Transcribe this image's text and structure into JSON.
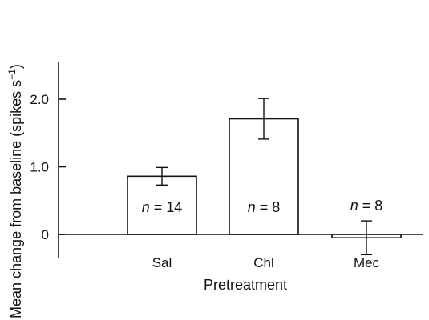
{
  "chart_data": {
    "type": "bar",
    "xlabel": "Pretreatment",
    "ylabel": "Mean change from baseline (spikes s⁻¹)",
    "ylabel_main": "Mean change from baseline (spikes s",
    "ylabel_sup": "−1",
    "ylabel_close": ")",
    "ylim": [
      -0.35,
      2.55
    ],
    "yticks": [
      0,
      1.0,
      2.0
    ],
    "ytick_labels": [
      "0",
      "1.0",
      "2.0"
    ],
    "categories": [
      "Sal",
      "Chl",
      "Mec"
    ],
    "values": [
      0.86,
      1.71,
      -0.05
    ],
    "error": [
      0.13,
      0.3,
      0.25
    ],
    "n_labels": [
      {
        "prefix": "n",
        "text": " = 14"
      },
      {
        "prefix": "n",
        "text": " = 8"
      },
      {
        "prefix": "n",
        "text": " = 8"
      }
    ],
    "grid": false,
    "colors": {
      "bar_fill": "#ffffff",
      "stroke": "#111111"
    }
  }
}
